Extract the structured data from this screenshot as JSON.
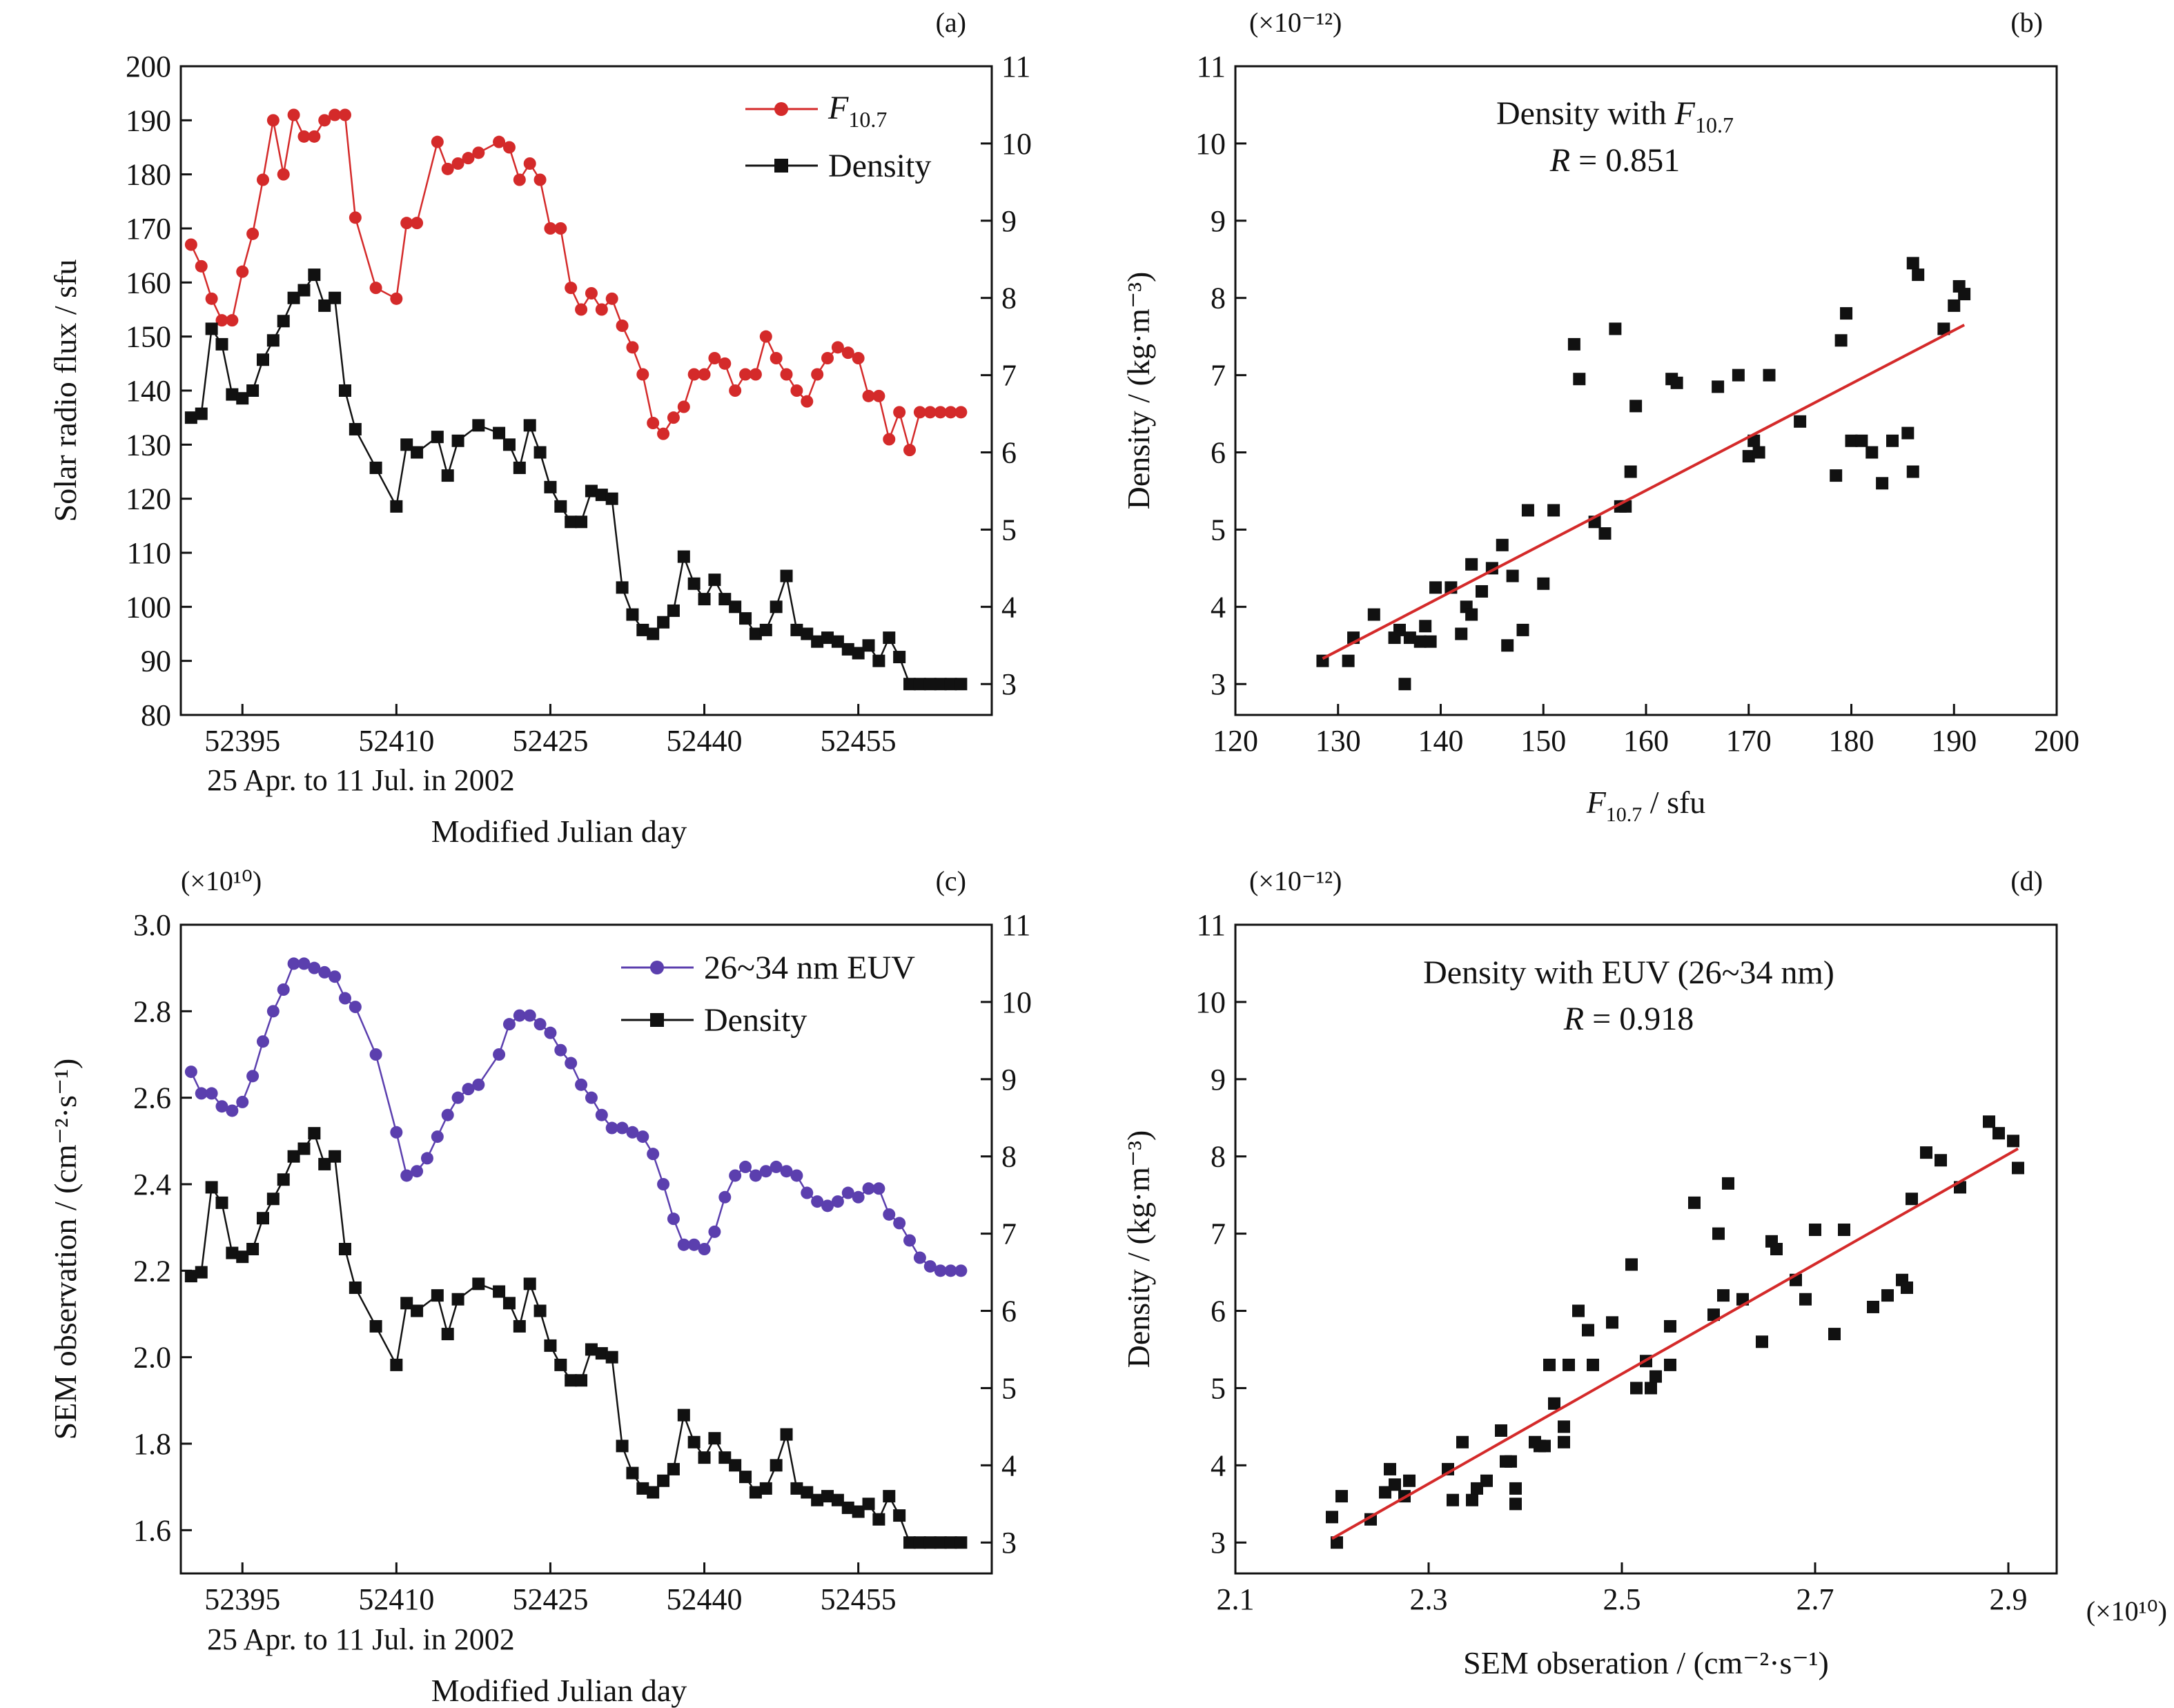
{
  "colors": {
    "f107": "#d42a2a",
    "euv": "#5b3fae",
    "density": "#111111",
    "fit": "#d42a2a"
  },
  "chart_data": [
    {
      "id": "a",
      "panel_label": "(a)",
      "type": "line",
      "x_ticks": [
        "52395",
        "52410",
        "52425",
        "52440",
        "52455"
      ],
      "x_ticks_values": [
        52395,
        52410,
        52425,
        52440,
        52455
      ],
      "xlim": [
        52389,
        52468
      ],
      "x_sublabel": "25 Apr. to 11 Jul. in 2002",
      "xlabel": "Modified Julian day",
      "ylabel": "Solar radio flux / sfu",
      "ylim": [
        80,
        200
      ],
      "y_ticks": [
        "80",
        "90",
        "100",
        "110",
        "120",
        "130",
        "140",
        "150",
        "160",
        "170",
        "180",
        "190",
        "200"
      ],
      "y2lim": [
        2.6,
        11
      ],
      "y2_ticks": [
        "3",
        "4",
        "5",
        "6",
        "7",
        "8",
        "9",
        "10",
        "11"
      ],
      "series": [
        {
          "name_main": "F",
          "name_sub": "10.7",
          "axis": "left",
          "marker": "circle",
          "x": [
            52390,
            52391,
            52392,
            52393,
            52394,
            52395,
            52396,
            52397,
            52398,
            52399,
            52400,
            52401,
            52402,
            52403,
            52404,
            52405,
            52406,
            52408,
            52410,
            52411,
            52412,
            52414,
            52415,
            52416,
            52417,
            52418,
            52420,
            52421,
            52422,
            52423,
            52424,
            52425,
            52426,
            52427,
            52428,
            52429,
            52430,
            52431,
            52432,
            52433,
            52434,
            52435,
            52436,
            52437,
            52438,
            52439,
            52440,
            52441,
            52442,
            52443,
            52444,
            52445,
            52446,
            52447,
            52448,
            52449,
            52450,
            52451,
            52452,
            52453,
            52454,
            52455,
            52456,
            52457,
            52458,
            52459,
            52460,
            52461,
            52462,
            52463,
            52464,
            52465
          ],
          "y": [
            167,
            163,
            157,
            153,
            153,
            162,
            169,
            179,
            190,
            180,
            191,
            187,
            187,
            190,
            191,
            191,
            172,
            159,
            157,
            171,
            171,
            186,
            181,
            182,
            183,
            184,
            186,
            185,
            179,
            182,
            179,
            170,
            170,
            159,
            155,
            158,
            155,
            157,
            152,
            148,
            143,
            134,
            132,
            135,
            137,
            143,
            143,
            146,
            145,
            140,
            143,
            143,
            150,
            146,
            143,
            140,
            138,
            143,
            146,
            148,
            147,
            146,
            139,
            139,
            131,
            136,
            129,
            136,
            136,
            136,
            136,
            136
          ]
        },
        {
          "name": "Density",
          "axis": "right",
          "marker": "square",
          "x": [
            52390,
            52391,
            52392,
            52393,
            52394,
            52395,
            52396,
            52397,
            52398,
            52399,
            52400,
            52401,
            52402,
            52403,
            52404,
            52405,
            52406,
            52408,
            52410,
            52411,
            52412,
            52414,
            52415,
            52416,
            52418,
            52420,
            52421,
            52422,
            52423,
            52424,
            52425,
            52426,
            52427,
            52428,
            52429,
            52430,
            52431,
            52432,
            52433,
            52434,
            52435,
            52436,
            52437,
            52438,
            52439,
            52440,
            52441,
            52442,
            52443,
            52444,
            52445,
            52446,
            52447,
            52448,
            52449,
            52450,
            52451,
            52452,
            52453,
            52454,
            52455,
            52456,
            52457,
            52458,
            52459,
            52460,
            52461,
            52462,
            52463,
            52464,
            52465
          ],
          "y": [
            6.45,
            6.5,
            7.6,
            7.4,
            6.75,
            6.7,
            6.8,
            7.2,
            7.45,
            7.7,
            8.0,
            8.1,
            8.3,
            7.9,
            8.0,
            6.8,
            6.3,
            5.8,
            5.3,
            6.1,
            6.0,
            6.2,
            5.7,
            6.15,
            6.35,
            6.25,
            6.1,
            5.8,
            6.35,
            6.0,
            5.55,
            5.3,
            5.1,
            5.1,
            5.5,
            5.45,
            5.4,
            4.25,
            3.9,
            3.7,
            3.65,
            3.8,
            3.95,
            4.65,
            4.3,
            4.1,
            4.35,
            4.1,
            4.0,
            3.85,
            3.65,
            3.7,
            4.0,
            4.4,
            3.7,
            3.65,
            3.55,
            3.6,
            3.55,
            3.45,
            3.4,
            3.5,
            3.3,
            3.6,
            3.35,
            3.0,
            3.0,
            3.0,
            3.0,
            3.0,
            3.0
          ]
        }
      ]
    },
    {
      "id": "b",
      "panel_label": "(b)",
      "type": "scatter",
      "exponent_label": "(×10⁻¹²)",
      "title": "Density with ",
      "title_main": "F",
      "title_sub": "10.7",
      "r_main": "R",
      "r_value": " = 0.851",
      "xlabel_main": "F",
      "xlabel_sub": "10.7",
      "xlabel_unit": " / sfu",
      "ylabel": "Density / (kg·m⁻³)",
      "xlim": [
        120,
        200
      ],
      "x_ticks": [
        "120",
        "130",
        "140",
        "150",
        "160",
        "170",
        "180",
        "190",
        "200"
      ],
      "ylim": [
        2.6,
        11
      ],
      "y_ticks": [
        "3",
        "4",
        "5",
        "6",
        "7",
        "8",
        "9",
        "10",
        "11"
      ],
      "points_x": [
        128.5,
        131,
        131.5,
        133.5,
        135.5,
        136,
        136.5,
        137,
        138,
        138.5,
        139,
        139.5,
        141,
        142,
        142.5,
        143,
        143,
        144,
        145,
        146,
        146.5,
        147,
        148,
        148.5,
        150,
        151,
        153,
        153.5,
        155,
        156,
        157,
        157.5,
        158,
        158.5,
        159,
        162.5,
        163,
        167,
        169,
        170,
        170.5,
        171,
        172,
        175,
        178.5,
        179,
        179.5,
        180,
        181,
        182,
        183,
        184,
        185.5,
        186,
        186,
        186.5,
        189,
        190,
        190.5,
        191
      ],
      "points_y": [
        3.3,
        3.3,
        3.6,
        3.9,
        3.6,
        3.7,
        3.0,
        3.6,
        3.55,
        3.75,
        3.55,
        4.25,
        4.25,
        3.65,
        4.0,
        4.55,
        3.9,
        4.2,
        4.5,
        4.8,
        3.5,
        4.4,
        3.7,
        5.25,
        4.3,
        5.25,
        7.4,
        6.95,
        5.1,
        4.95,
        7.6,
        5.3,
        5.3,
        5.75,
        6.6,
        6.95,
        6.9,
        6.85,
        7.0,
        5.95,
        6.15,
        6.0,
        7.0,
        6.4,
        5.7,
        7.45,
        7.8,
        6.15,
        6.15,
        6.0,
        5.6,
        6.15,
        6.25,
        5.75,
        8.45,
        8.3,
        7.6,
        7.9,
        8.15,
        8.05
      ],
      "fit": {
        "x": [
          128.5,
          191
        ],
        "y": [
          3.33,
          7.65
        ]
      }
    },
    {
      "id": "c",
      "panel_label": "(c)",
      "type": "line",
      "exponent_label": "(×10¹⁰)",
      "x_ticks": [
        "52395",
        "52410",
        "52425",
        "52440",
        "52455"
      ],
      "x_ticks_values": [
        52395,
        52410,
        52425,
        52440,
        52455
      ],
      "xlim": [
        52389,
        52468
      ],
      "x_sublabel": "25 Apr. to 11 Jul. in 2002",
      "xlabel": "Modified Julian day",
      "ylabel": "SEM observation / (cm⁻²·s⁻¹)",
      "ylim": [
        1.5,
        3.0
      ],
      "y_ticks": [
        "1.6",
        "1.8",
        "2.0",
        "2.2",
        "2.4",
        "2.6",
        "2.8",
        "3.0"
      ],
      "y_ticks_values": [
        1.6,
        1.8,
        2.0,
        2.2,
        2.4,
        2.6,
        2.8,
        3.0
      ],
      "y2lim": [
        2.6,
        11
      ],
      "y2_ticks": [
        "3",
        "4",
        "5",
        "6",
        "7",
        "8",
        "9",
        "10",
        "11"
      ],
      "series": [
        {
          "name": "26~34 nm EUV",
          "axis": "left",
          "marker": "circle",
          "x": [
            52390,
            52391,
            52392,
            52393,
            52394,
            52395,
            52396,
            52397,
            52398,
            52399,
            52400,
            52401,
            52402,
            52403,
            52404,
            52405,
            52406,
            52408,
            52410,
            52411,
            52412,
            52413,
            52414,
            52415,
            52416,
            52417,
            52418,
            52420,
            52421,
            52422,
            52423,
            52424,
            52425,
            52426,
            52427,
            52428,
            52429,
            52430,
            52431,
            52432,
            52433,
            52434,
            52435,
            52436,
            52437,
            52438,
            52439,
            52440,
            52441,
            52442,
            52443,
            52444,
            52445,
            52446,
            52447,
            52448,
            52449,
            52450,
            52451,
            52452,
            52453,
            52454,
            52455,
            52456,
            52457,
            52458,
            52459,
            52460,
            52461,
            52462,
            52463,
            52464,
            52465
          ],
          "y": [
            2.66,
            2.61,
            2.61,
            2.58,
            2.57,
            2.59,
            2.65,
            2.73,
            2.8,
            2.85,
            2.91,
            2.91,
            2.9,
            2.89,
            2.88,
            2.83,
            2.81,
            2.7,
            2.52,
            2.42,
            2.43,
            2.46,
            2.51,
            2.56,
            2.6,
            2.62,
            2.63,
            2.7,
            2.77,
            2.79,
            2.79,
            2.77,
            2.75,
            2.71,
            2.68,
            2.63,
            2.6,
            2.56,
            2.53,
            2.53,
            2.52,
            2.51,
            2.47,
            2.4,
            2.32,
            2.26,
            2.26,
            2.25,
            2.29,
            2.37,
            2.42,
            2.44,
            2.42,
            2.43,
            2.44,
            2.43,
            2.42,
            2.38,
            2.36,
            2.35,
            2.36,
            2.38,
            2.37,
            2.39,
            2.39,
            2.33,
            2.31,
            2.27,
            2.23,
            2.21,
            2.2,
            2.2,
            2.2
          ]
        },
        {
          "name": "Density",
          "axis": "right",
          "marker": "square",
          "x": [
            52390,
            52391,
            52392,
            52393,
            52394,
            52395,
            52396,
            52397,
            52398,
            52399,
            52400,
            52401,
            52402,
            52403,
            52404,
            52405,
            52406,
            52408,
            52410,
            52411,
            52412,
            52414,
            52415,
            52416,
            52418,
            52420,
            52421,
            52422,
            52423,
            52424,
            52425,
            52426,
            52427,
            52428,
            52429,
            52430,
            52431,
            52432,
            52433,
            52434,
            52435,
            52436,
            52437,
            52438,
            52439,
            52440,
            52441,
            52442,
            52443,
            52444,
            52445,
            52446,
            52447,
            52448,
            52449,
            52450,
            52451,
            52452,
            52453,
            52454,
            52455,
            52456,
            52457,
            52458,
            52459,
            52460,
            52461,
            52462,
            52463,
            52464,
            52465
          ],
          "y": [
            6.45,
            6.5,
            7.6,
            7.4,
            6.75,
            6.7,
            6.8,
            7.2,
            7.45,
            7.7,
            8.0,
            8.1,
            8.3,
            7.9,
            8.0,
            6.8,
            6.3,
            5.8,
            5.3,
            6.1,
            6.0,
            6.2,
            5.7,
            6.15,
            6.35,
            6.25,
            6.1,
            5.8,
            6.35,
            6.0,
            5.55,
            5.3,
            5.1,
            5.1,
            5.5,
            5.45,
            5.4,
            4.25,
            3.9,
            3.7,
            3.65,
            3.8,
            3.95,
            4.65,
            4.3,
            4.1,
            4.35,
            4.1,
            4.0,
            3.85,
            3.65,
            3.7,
            4.0,
            4.4,
            3.7,
            3.65,
            3.55,
            3.6,
            3.55,
            3.45,
            3.4,
            3.5,
            3.3,
            3.6,
            3.35,
            3.0,
            3.0,
            3.0,
            3.0,
            3.0,
            3.0
          ]
        }
      ]
    },
    {
      "id": "d",
      "panel_label": "(d)",
      "type": "scatter",
      "exponent_label": "(×10⁻¹²)",
      "x_exponent_label": "(×10¹⁰)",
      "title": "Density with EUV (26~34 nm)",
      "r_main": "R",
      "r_value": " = 0.918",
      "xlabel": "SEM obseration / (cm⁻²·s⁻¹)",
      "ylabel": "Density / (kg·m⁻³)",
      "xlim": [
        2.1,
        2.95
      ],
      "x_ticks": [
        "2.1",
        "2.3",
        "2.5",
        "2.7",
        "2.9"
      ],
      "x_ticks_values": [
        2.1,
        2.3,
        2.5,
        2.7,
        2.9
      ],
      "ylim": [
        2.6,
        11
      ],
      "y_ticks": [
        "3",
        "4",
        "5",
        "6",
        "7",
        "8",
        "9",
        "10",
        "11"
      ],
      "points_x": [
        2.2,
        2.205,
        2.21,
        2.24,
        2.255,
        2.26,
        2.265,
        2.275,
        2.28,
        2.32,
        2.325,
        2.335,
        2.345,
        2.35,
        2.36,
        2.375,
        2.38,
        2.385,
        2.39,
        2.39,
        2.41,
        2.415,
        2.42,
        2.425,
        2.43,
        2.44,
        2.44,
        2.445,
        2.455,
        2.465,
        2.47,
        2.49,
        2.51,
        2.515,
        2.525,
        2.53,
        2.535,
        2.55,
        2.55,
        2.575,
        2.595,
        2.6,
        2.605,
        2.61,
        2.625,
        2.645,
        2.655,
        2.66,
        2.68,
        2.69,
        2.7,
        2.72,
        2.73,
        2.76,
        2.775,
        2.79,
        2.795,
        2.8,
        2.815,
        2.83,
        2.85,
        2.88,
        2.89,
        2.905,
        2.91
      ],
      "points_y": [
        3.33,
        3.0,
        3.6,
        3.3,
        3.65,
        3.95,
        3.75,
        3.6,
        3.8,
        3.95,
        3.55,
        4.3,
        3.55,
        3.7,
        3.8,
        4.45,
        4.05,
        4.05,
        3.5,
        3.7,
        4.3,
        4.25,
        4.25,
        5.3,
        4.8,
        4.5,
        4.3,
        5.3,
        6.0,
        5.75,
        5.3,
        5.85,
        6.6,
        5.0,
        5.35,
        5.0,
        5.15,
        5.3,
        5.8,
        7.4,
        5.95,
        7.0,
        6.2,
        7.65,
        6.15,
        5.6,
        6.9,
        6.8,
        6.4,
        6.15,
        7.05,
        5.7,
        7.05,
        6.05,
        6.2,
        6.4,
        6.3,
        7.45,
        8.05,
        7.95,
        7.6,
        8.45,
        8.3,
        8.2,
        7.85
      ],
      "fit": {
        "x": [
          2.2,
          2.91
        ],
        "y": [
          3.05,
          8.1
        ]
      }
    }
  ]
}
